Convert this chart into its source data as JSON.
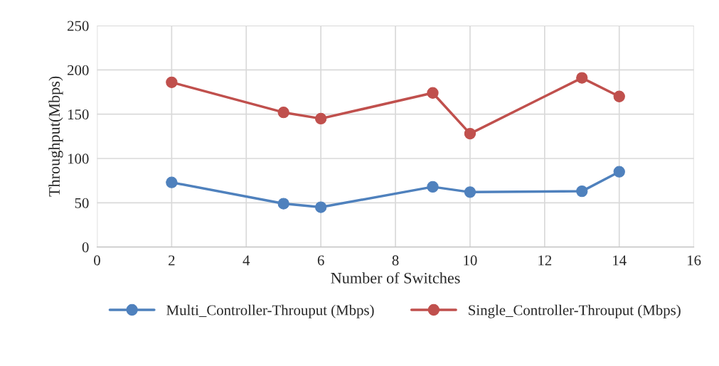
{
  "chart_data": {
    "type": "line",
    "xlabel": "Number of Switches",
    "ylabel": "Throughput(Mbps)",
    "x": [
      2,
      5,
      6,
      9,
      10,
      13,
      14
    ],
    "series": [
      {
        "name": "Multi_Controller-Throuput (Mbps)",
        "color": "#4f81bd",
        "values": [
          73,
          49,
          45,
          68,
          62,
          63,
          85
        ]
      },
      {
        "name": "Single_Controller-Throuput (Mbps)",
        "color": "#c0504d",
        "values": [
          186,
          152,
          145,
          174,
          128,
          191,
          170
        ]
      }
    ],
    "xlim": [
      0,
      16
    ],
    "xticks": [
      0,
      2,
      4,
      6,
      8,
      10,
      12,
      14,
      16
    ],
    "ylim": [
      0,
      250
    ],
    "yticks": [
      0,
      50,
      100,
      150,
      200,
      250
    ],
    "grid": true,
    "legend": "bottom",
    "marker": "circle",
    "line_style": "solid"
  }
}
